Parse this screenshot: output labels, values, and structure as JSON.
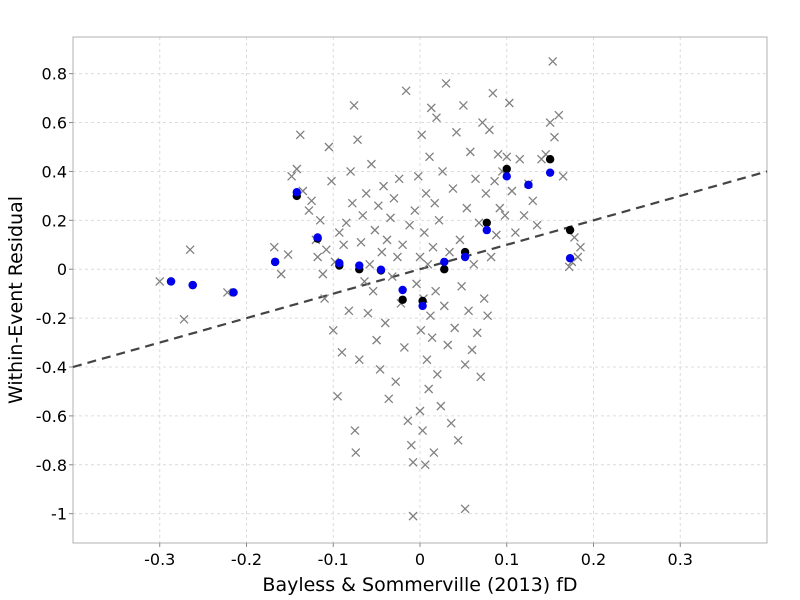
{
  "chart_data": {
    "type": "scatter",
    "title": "",
    "xlabel": "Bayless & Sommerville (2013) fD",
    "ylabel": "Within-Event Residual",
    "xlim": [
      -0.4,
      0.4
    ],
    "ylim": [
      -1.12,
      0.95
    ],
    "x_ticks": [
      -0.3,
      -0.2,
      -0.1,
      0,
      0.1,
      0.2,
      0.3
    ],
    "x_tick_labels": [
      "-0.3",
      "-0.2",
      "-0.1",
      "0",
      "0.1",
      "0.2",
      "0.3"
    ],
    "y_ticks": [
      0.8,
      0.6,
      0.4,
      0.2,
      0,
      -0.2,
      -0.4,
      -0.6,
      -0.8,
      -1
    ],
    "y_tick_labels": [
      "0.8",
      "0.6",
      "0.4",
      "0.2",
      "0",
      "-0.2",
      "-0.4",
      "-0.6",
      "-0.8",
      "-1"
    ],
    "grid": true,
    "legend": "none",
    "trend_line": {
      "style": "dashed",
      "color": "#444444",
      "x": [
        -0.4,
        0.4
      ],
      "y": [
        -0.4,
        0.4
      ]
    },
    "series": [
      {
        "marker": "x",
        "color": "#808080",
        "points": [
          [
            -0.3,
            -0.05
          ],
          [
            -0.265,
            0.08
          ],
          [
            -0.272,
            -0.205
          ],
          [
            -0.222,
            -0.095
          ],
          [
            -0.168,
            0.09
          ],
          [
            -0.16,
            -0.02
          ],
          [
            -0.152,
            0.06
          ],
          [
            -0.148,
            0.38
          ],
          [
            -0.142,
            0.41
          ],
          [
            -0.138,
            0.55
          ],
          [
            -0.135,
            0.32
          ],
          [
            -0.128,
            0.24
          ],
          [
            -0.125,
            0.28
          ],
          [
            -0.12,
            0.12
          ],
          [
            -0.118,
            0.05
          ],
          [
            -0.115,
            0.2
          ],
          [
            -0.112,
            -0.02
          ],
          [
            -0.11,
            -0.12
          ],
          [
            -0.108,
            0.08
          ],
          [
            -0.105,
            0.5
          ],
          [
            -0.102,
            0.36
          ],
          [
            -0.1,
            -0.25
          ],
          [
            -0.098,
            0.03
          ],
          [
            -0.095,
            -0.52
          ],
          [
            -0.093,
            0.15
          ],
          [
            -0.09,
            -0.34
          ],
          [
            -0.088,
            0.1
          ],
          [
            -0.085,
            0.19
          ],
          [
            -0.082,
            -0.17
          ],
          [
            -0.08,
            0.4
          ],
          [
            -0.078,
            0.27
          ],
          [
            -0.076,
            0.67
          ],
          [
            -0.075,
            -0.66
          ],
          [
            -0.074,
            -0.75
          ],
          [
            -0.072,
            0.53
          ],
          [
            -0.07,
            -0.37
          ],
          [
            -0.068,
            0.11
          ],
          [
            -0.066,
            0.22
          ],
          [
            -0.064,
            -0.05
          ],
          [
            -0.062,
            0.31
          ],
          [
            -0.06,
            -0.18
          ],
          [
            -0.058,
            0.02
          ],
          [
            -0.056,
            0.43
          ],
          [
            -0.054,
            -0.09
          ],
          [
            -0.052,
            0.16
          ],
          [
            -0.05,
            -0.29
          ],
          [
            -0.048,
            0.26
          ],
          [
            -0.046,
            -0.41
          ],
          [
            -0.044,
            0.07
          ],
          [
            -0.042,
            0.34
          ],
          [
            -0.04,
            -0.22
          ],
          [
            -0.038,
            0.12
          ],
          [
            -0.036,
            -0.53
          ],
          [
            -0.034,
            0.21
          ],
          [
            -0.032,
            -0.03
          ],
          [
            -0.03,
            0.29
          ],
          [
            -0.028,
            -0.46
          ],
          [
            -0.026,
            0.05
          ],
          [
            -0.024,
            0.37
          ],
          [
            -0.022,
            -0.14
          ],
          [
            -0.02,
            0.1
          ],
          [
            -0.018,
            -0.32
          ],
          [
            -0.016,
            0.73
          ],
          [
            -0.014,
            -0.62
          ],
          [
            -0.012,
            0.18
          ],
          [
            -0.01,
            -0.72
          ],
          [
            -0.008,
            -1.01
          ],
          [
            -0.008,
            -0.79
          ],
          [
            -0.006,
            0.24
          ],
          [
            -0.004,
            -0.06
          ],
          [
            -0.002,
            0.38
          ],
          [
            0,
            -0.58
          ],
          [
            0,
            0.05
          ],
          [
            0.001,
            -0.25
          ],
          [
            0.002,
            0.55
          ],
          [
            0.003,
            -0.66
          ],
          [
            0.004,
            -0.12
          ],
          [
            0.005,
            0.15
          ],
          [
            0.006,
            -0.8
          ],
          [
            0.007,
            0.31
          ],
          [
            0.008,
            -0.37
          ],
          [
            0.009,
            0.02
          ],
          [
            0.01,
            -0.49
          ],
          [
            0.011,
            0.46
          ],
          [
            0.012,
            -0.19
          ],
          [
            0.013,
            0.66
          ],
          [
            0.014,
            -0.28
          ],
          [
            0.015,
            0.09
          ],
          [
            0.016,
            -0.75
          ],
          [
            0.017,
            0.27
          ],
          [
            0.018,
            -0.09
          ],
          [
            0.019,
            0.62
          ],
          [
            0.02,
            -0.43
          ],
          [
            0.022,
            0.2
          ],
          [
            0.024,
            -0.56
          ],
          [
            0.026,
            0.4
          ],
          [
            0.028,
            -0.15
          ],
          [
            0.03,
            0.76
          ],
          [
            0.032,
            -0.31
          ],
          [
            0.034,
            0.07
          ],
          [
            0.036,
            -0.63
          ],
          [
            0.038,
            0.33
          ],
          [
            0.04,
            -0.24
          ],
          [
            0.042,
            0.56
          ],
          [
            0.044,
            -0.7
          ],
          [
            0.046,
            0.12
          ],
          [
            0.048,
            -0.07
          ],
          [
            0.05,
            0.67
          ],
          [
            0.052,
            -0.98
          ],
          [
            0.052,
            -0.39
          ],
          [
            0.054,
            0.25
          ],
          [
            0.056,
            -0.17
          ],
          [
            0.058,
            0.48
          ],
          [
            0.06,
            -0.33
          ],
          [
            0.062,
            0.02
          ],
          [
            0.064,
            0.37
          ],
          [
            0.066,
            -0.26
          ],
          [
            0.068,
            0.19
          ],
          [
            0.07,
            -0.44
          ],
          [
            0.072,
            0.6
          ],
          [
            0.074,
            -0.12
          ],
          [
            0.076,
            0.31
          ],
          [
            0.078,
            -0.19
          ],
          [
            0.08,
            0.57
          ],
          [
            0.082,
            0.05
          ],
          [
            0.084,
            0.72
          ],
          [
            0.086,
            0.36
          ],
          [
            0.088,
            0.14
          ],
          [
            0.09,
            0.47
          ],
          [
            0.092,
            0.25
          ],
          [
            0.095,
            0.4
          ],
          [
            0.098,
            0.22
          ],
          [
            0.1,
            0.46
          ],
          [
            0.103,
            0.68
          ],
          [
            0.106,
            0.32
          ],
          [
            0.11,
            0.15
          ],
          [
            0.115,
            0.45
          ],
          [
            0.12,
            0.22
          ],
          [
            0.125,
            0.35
          ],
          [
            0.13,
            0.28
          ],
          [
            0.135,
            0.18
          ],
          [
            0.14,
            0.45
          ],
          [
            0.145,
            0.47
          ],
          [
            0.15,
            0.6
          ],
          [
            0.153,
            0.85
          ],
          [
            0.155,
            0.54
          ],
          [
            0.16,
            0.63
          ],
          [
            0.165,
            0.38
          ],
          [
            0.172,
            0.01
          ],
          [
            0.175,
            0.03
          ],
          [
            0.178,
            0.13
          ],
          [
            0.182,
            0.05
          ],
          [
            0.185,
            0.09
          ]
        ]
      },
      {
        "marker": "circle",
        "color": "#000000",
        "points": [
          [
            -0.287,
            -0.05
          ],
          [
            -0.262,
            -0.065
          ],
          [
            -0.215,
            -0.095
          ],
          [
            -0.167,
            0.03
          ],
          [
            -0.142,
            0.3
          ],
          [
            -0.118,
            0.125
          ],
          [
            -0.093,
            0.015
          ],
          [
            -0.07,
            0.0
          ],
          [
            -0.045,
            -0.005
          ],
          [
            -0.02,
            -0.125
          ],
          [
            0.003,
            -0.13
          ],
          [
            0.028,
            0.0
          ],
          [
            0.052,
            0.07
          ],
          [
            0.077,
            0.19
          ],
          [
            0.1,
            0.41
          ],
          [
            0.125,
            0.345
          ],
          [
            0.15,
            0.45
          ],
          [
            0.173,
            0.16
          ]
        ]
      },
      {
        "marker": "circle",
        "color": "#0000ee",
        "points": [
          [
            -0.287,
            -0.05
          ],
          [
            -0.262,
            -0.065
          ],
          [
            -0.215,
            -0.095
          ],
          [
            -0.167,
            0.03
          ],
          [
            -0.142,
            0.315
          ],
          [
            -0.118,
            0.13
          ],
          [
            -0.093,
            0.025
          ],
          [
            -0.07,
            0.015
          ],
          [
            -0.045,
            -0.002
          ],
          [
            -0.02,
            -0.085
          ],
          [
            0.003,
            -0.15
          ],
          [
            0.028,
            0.03
          ],
          [
            0.052,
            0.05
          ],
          [
            0.077,
            0.16
          ],
          [
            0.1,
            0.38
          ],
          [
            0.125,
            0.345
          ],
          [
            0.15,
            0.395
          ],
          [
            0.173,
            0.045
          ]
        ]
      }
    ]
  }
}
